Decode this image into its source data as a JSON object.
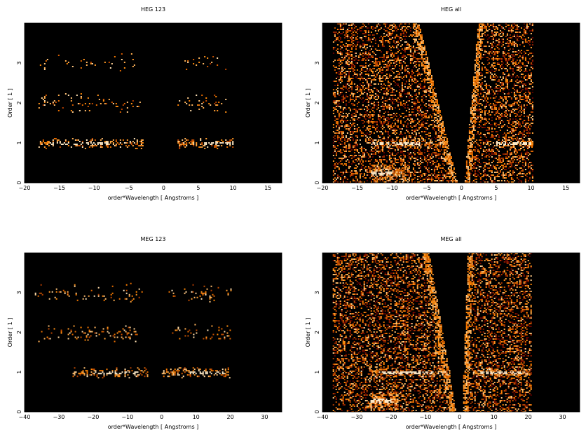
{
  "chart_data": [
    {
      "type": "heatmap",
      "title": "HEG 123",
      "xlabel": "order*Wavelength [ Angstroms ]",
      "ylabel": "Order [ 1 ]",
      "xlim": [
        -20,
        17
      ],
      "ylim": [
        0,
        4
      ],
      "xticks": [
        -20,
        -15,
        -10,
        -5,
        0,
        5,
        10,
        15
      ],
      "yticks": [
        0,
        1,
        2,
        3
      ],
      "background": "#000000",
      "bands": [
        {
          "y": 1,
          "xmin": -18,
          "xmax": -3,
          "density": 0.55,
          "core": [
            -16.5,
            -8
          ]
        },
        {
          "y": 1,
          "xmin": 2,
          "xmax": 10,
          "density": 0.6,
          "core": [
            5.5,
            10
          ]
        },
        {
          "y": 2,
          "xmin": -18,
          "xmax": -2.5,
          "density": 0.12,
          "core": null
        },
        {
          "y": 2,
          "xmin": 2,
          "xmax": 9,
          "density": 0.12,
          "core": null
        },
        {
          "y": 3,
          "xmin": -18,
          "xmax": -4,
          "density": 0.07,
          "core": null
        },
        {
          "y": 3,
          "xmin": 3,
          "xmax": 9,
          "density": 0.07,
          "core": null
        }
      ],
      "wedges": false
    },
    {
      "type": "heatmap",
      "title": "HEG all",
      "xlabel": "order*Wavelength [ Angstroms ]",
      "ylabel": "Order [ 1 ]",
      "xlim": [
        -20,
        17
      ],
      "ylim": [
        0,
        4
      ],
      "xticks": [
        -20,
        -15,
        -10,
        -5,
        0,
        5,
        10,
        15
      ],
      "yticks": [
        0,
        1,
        2,
        3
      ],
      "background": "#000000",
      "fill_xmin": -18.5,
      "fill_xmax": 10.2,
      "bands": [
        {
          "y": 1,
          "xmin": -13,
          "xmax": -2,
          "density": 0.7,
          "core": [
            -15,
            -6
          ]
        },
        {
          "y": 1,
          "xmin": 5,
          "xmax": 10.2,
          "density": 0.7,
          "core": [
            5,
            10
          ]
        },
        {
          "y": 0.25,
          "xmin": -13,
          "xmax": -8,
          "density": 0.8,
          "core": [
            -13,
            -10
          ]
        }
      ],
      "wedges": true
    },
    {
      "type": "heatmap",
      "title": "MEG 123",
      "xlabel": "order*Wavelength [ Angstroms ]",
      "ylabel": "Order [ 1 ]",
      "xlim": [
        -40,
        35
      ],
      "ylim": [
        0,
        4
      ],
      "xticks": [
        -40,
        -30,
        -20,
        -10,
        0,
        10,
        20,
        30
      ],
      "yticks": [
        0,
        1,
        2,
        3
      ],
      "background": "#000000",
      "bands": [
        {
          "y": 1,
          "xmin": -26,
          "xmax": -4,
          "density": 0.6,
          "core": [
            -20,
            -7
          ]
        },
        {
          "y": 1,
          "xmin": 0,
          "xmax": 20,
          "density": 0.6,
          "core": [
            8,
            18
          ]
        },
        {
          "y": 2,
          "xmin": -36,
          "xmax": -7,
          "density": 0.15,
          "core": null
        },
        {
          "y": 2,
          "xmin": 3,
          "xmax": 20,
          "density": 0.12,
          "core": null
        },
        {
          "y": 3,
          "xmin": -37,
          "xmax": -5,
          "density": 0.12,
          "core": null
        },
        {
          "y": 3,
          "xmin": 2,
          "xmax": 20,
          "density": 0.1,
          "core": null
        }
      ],
      "wedges": false
    },
    {
      "type": "heatmap",
      "title": "MEG all",
      "xlabel": "order*Wavelength [ Angstroms ]",
      "ylabel": "Order [ 1 ]",
      "xlim": [
        -40,
        35
      ],
      "ylim": [
        0,
        4
      ],
      "xticks": [
        -40,
        -30,
        -20,
        -10,
        0,
        10,
        20,
        30
      ],
      "yticks": [
        0,
        1,
        2,
        3
      ],
      "background": "#000000",
      "fill_xmin": -37,
      "fill_xmax": 21,
      "bands": [
        {
          "y": 1,
          "xmin": -26,
          "xmax": -3,
          "density": 0.7,
          "core": [
            -24,
            -8
          ]
        },
        {
          "y": 1,
          "xmin": 4,
          "xmax": 20,
          "density": 0.7,
          "core": [
            6,
            18
          ]
        },
        {
          "y": 0.3,
          "xmin": -26,
          "xmax": -18,
          "density": 0.8,
          "core": [
            -26,
            -20
          ]
        }
      ],
      "wedges": true
    }
  ]
}
